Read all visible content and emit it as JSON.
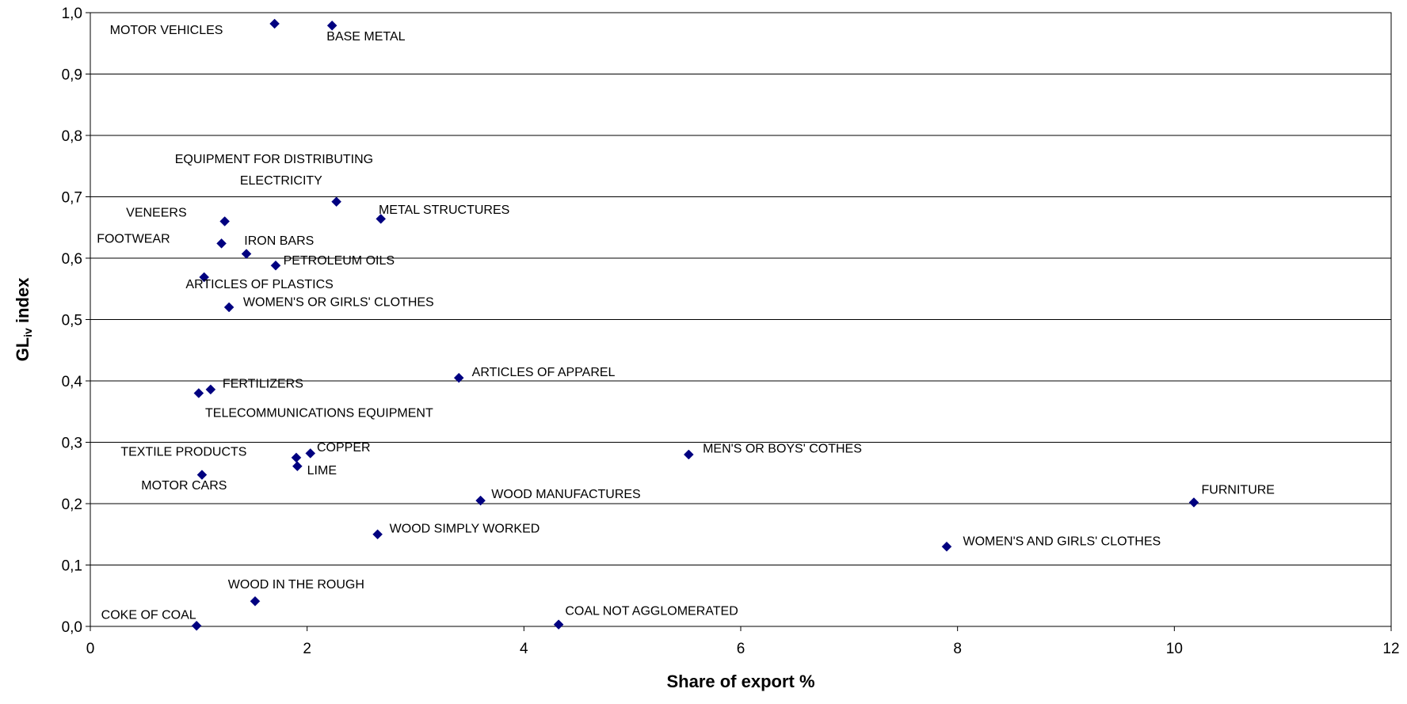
{
  "chart_data": {
    "type": "scatter",
    "xlabel": "Share of export %",
    "ylabel_main": "GL",
    "ylabel_sub": "iv",
    "ylabel_tail": " index",
    "xlim": [
      0,
      12
    ],
    "ylim": [
      0,
      1.0
    ],
    "x_ticks": [
      "0",
      "2",
      "4",
      "6",
      "8",
      "10",
      "12"
    ],
    "y_ticks": [
      "0,0",
      "0,1",
      "0,2",
      "0,3",
      "0,4",
      "0,5",
      "0,6",
      "0,7",
      "0,8",
      "0,9",
      "1,0"
    ],
    "grid": "horizontal",
    "marker_color": "#000080",
    "points": [
      {
        "x": 1.7,
        "y": 0.982
      },
      {
        "x": 2.23,
        "y": 0.979
      },
      {
        "x": 2.27,
        "y": 0.692
      },
      {
        "x": 2.68,
        "y": 0.664
      },
      {
        "x": 1.24,
        "y": 0.66
      },
      {
        "x": 1.21,
        "y": 0.624
      },
      {
        "x": 1.44,
        "y": 0.607
      },
      {
        "x": 1.71,
        "y": 0.588
      },
      {
        "x": 1.05,
        "y": 0.569
      },
      {
        "x": 1.28,
        "y": 0.52
      },
      {
        "x": 3.4,
        "y": 0.405
      },
      {
        "x": 1.11,
        "y": 0.386
      },
      {
        "x": 1.0,
        "y": 0.38
      },
      {
        "x": 2.03,
        "y": 0.282
      },
      {
        "x": 1.9,
        "y": 0.275
      },
      {
        "x": 1.91,
        "y": 0.261
      },
      {
        "x": 5.52,
        "y": 0.28
      },
      {
        "x": 1.03,
        "y": 0.247
      },
      {
        "x": 3.6,
        "y": 0.205
      },
      {
        "x": 10.18,
        "y": 0.202
      },
      {
        "x": 2.65,
        "y": 0.15
      },
      {
        "x": 7.9,
        "y": 0.13
      },
      {
        "x": 1.52,
        "y": 0.041
      },
      {
        "x": 0.98,
        "y": 0.001
      },
      {
        "x": 4.32,
        "y": 0.003
      }
    ],
    "labels": [
      {
        "text": "MOTOR VEHICLES",
        "x": 0.18,
        "y": 0.965
      },
      {
        "text": "BASE METAL",
        "x": 2.18,
        "y": 0.955
      },
      {
        "text": "EQUIPMENT FOR DISTRIBUTING",
        "x": 0.78,
        "y": 0.755
      },
      {
        "text": "ELECTRICITY",
        "x": 1.38,
        "y": 0.72
      },
      {
        "text": "VENEERS",
        "x": 0.33,
        "y": 0.668
      },
      {
        "text": "METAL STRUCTURES",
        "x": 2.66,
        "y": 0.672
      },
      {
        "text": "FOOTWEAR",
        "x": 0.06,
        "y": 0.625
      },
      {
        "text": "IRON BARS",
        "x": 1.42,
        "y": 0.622
      },
      {
        "text": "PETROLEUM OILS",
        "x": 1.78,
        "y": 0.59
      },
      {
        "text": "ARTICLES OF PLASTICS",
        "x": 0.88,
        "y": 0.551
      },
      {
        "text": "WOMEN'S OR GIRLS' CLOTHES",
        "x": 1.41,
        "y": 0.522
      },
      {
        "text": "ARTICLES OF APPAREL",
        "x": 3.52,
        "y": 0.408
      },
      {
        "text": "FERTILIZERS",
        "x": 1.22,
        "y": 0.389
      },
      {
        "text": "TELECOMMUNICATIONS EQUIPMENT",
        "x": 1.06,
        "y": 0.341
      },
      {
        "text": "COPPER",
        "x": 2.09,
        "y": 0.285
      },
      {
        "text": "TEXTILE PRODUCTS",
        "x": 0.28,
        "y": 0.278
      },
      {
        "text": "MEN'S OR BOYS' COTHES",
        "x": 5.65,
        "y": 0.283
      },
      {
        "text": "LIME",
        "x": 2.0,
        "y": 0.248
      },
      {
        "text": "MOTOR CARS",
        "x": 0.47,
        "y": 0.223
      },
      {
        "text": "WOOD MANUFACTURES",
        "x": 3.7,
        "y": 0.209
      },
      {
        "text": "FURNITURE",
        "x": 10.25,
        "y": 0.216
      },
      {
        "text": "WOOD SIMPLY WORKED",
        "x": 2.76,
        "y": 0.153
      },
      {
        "text": "WOMEN'S AND GIRLS' CLOTHES",
        "x": 8.05,
        "y": 0.132
      },
      {
        "text": "WOOD IN THE ROUGH",
        "x": 1.27,
        "y": 0.062
      },
      {
        "text": "COKE OF COAL",
        "x": 0.1,
        "y": 0.012
      },
      {
        "text": "COAL NOT AGGLOMERATED",
        "x": 4.38,
        "y": 0.019
      }
    ]
  }
}
